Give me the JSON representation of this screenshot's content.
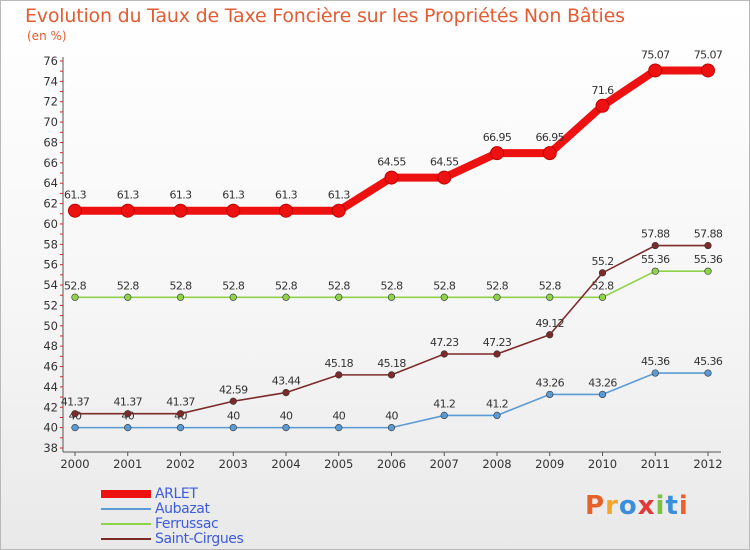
{
  "chart_data": {
    "type": "line",
    "title": "Evolution du Taux de Taxe Foncière sur les Propriétés Non Bâties",
    "ylabel": "(en %)",
    "categories": [
      "2000",
      "2001",
      "2002",
      "2003",
      "2004",
      "2005",
      "2006",
      "2007",
      "2008",
      "2009",
      "2010",
      "2011",
      "2012"
    ],
    "y_ticks": [
      "38",
      "40",
      "42",
      "44",
      "46",
      "48",
      "50",
      "52",
      "54",
      "56",
      "58",
      "60",
      "62",
      "64",
      "66",
      "68",
      "70",
      "72",
      "74",
      "76"
    ],
    "ylim": [
      38,
      76
    ],
    "grid": false,
    "legend_placement": "bottom-left",
    "series": [
      {
        "name": "ARLET",
        "color": "#ee1111",
        "emphasis": true,
        "values": [
          61.3,
          61.3,
          61.3,
          61.3,
          61.3,
          61.3,
          64.55,
          64.55,
          66.95,
          66.95,
          71.6,
          75.07,
          75.07
        ],
        "labels": [
          "61.3",
          "61.3",
          "61.3",
          "61.3",
          "61.3",
          "61.3",
          "64.55",
          "64.55",
          "66.95",
          "66.95",
          "71.6",
          "75.07",
          "75.07"
        ]
      },
      {
        "name": "Aubazat",
        "color": "#5b9bd5",
        "emphasis": false,
        "values": [
          40,
          40,
          40,
          40,
          40,
          40,
          40,
          41.2,
          41.2,
          43.26,
          43.26,
          45.36,
          45.36
        ],
        "labels": [
          "40",
          "40",
          "40",
          "40",
          "40",
          "40",
          "40",
          "41.2",
          "41.2",
          "43.26",
          "43.26",
          "45.36",
          "45.36"
        ]
      },
      {
        "name": "Ferrussac",
        "color": "#8fd34a",
        "emphasis": false,
        "values": [
          52.8,
          52.8,
          52.8,
          52.8,
          52.8,
          52.8,
          52.8,
          52.8,
          52.8,
          52.8,
          52.8,
          55.36,
          55.36
        ],
        "labels": [
          "52.8",
          "52.8",
          "52.8",
          "52.8",
          "52.8",
          "52.8",
          "52.8",
          "52.8",
          "52.8",
          "52.8",
          "52.8",
          "55.36",
          "55.36"
        ]
      },
      {
        "name": "Saint-Cirgues",
        "color": "#7d2a2a",
        "emphasis": false,
        "values": [
          41.37,
          41.37,
          41.37,
          42.59,
          43.44,
          45.18,
          45.18,
          47.23,
          47.23,
          49.12,
          55.2,
          57.88,
          57.88
        ],
        "labels": [
          "41.37",
          "41.37",
          "41.37",
          "42.59",
          "43.44",
          "45.18",
          "45.18",
          "47.23",
          "47.23",
          "49.12",
          "55.2",
          "57.88",
          "57.88"
        ]
      }
    ]
  },
  "logo": {
    "text": "Proxiti"
  }
}
